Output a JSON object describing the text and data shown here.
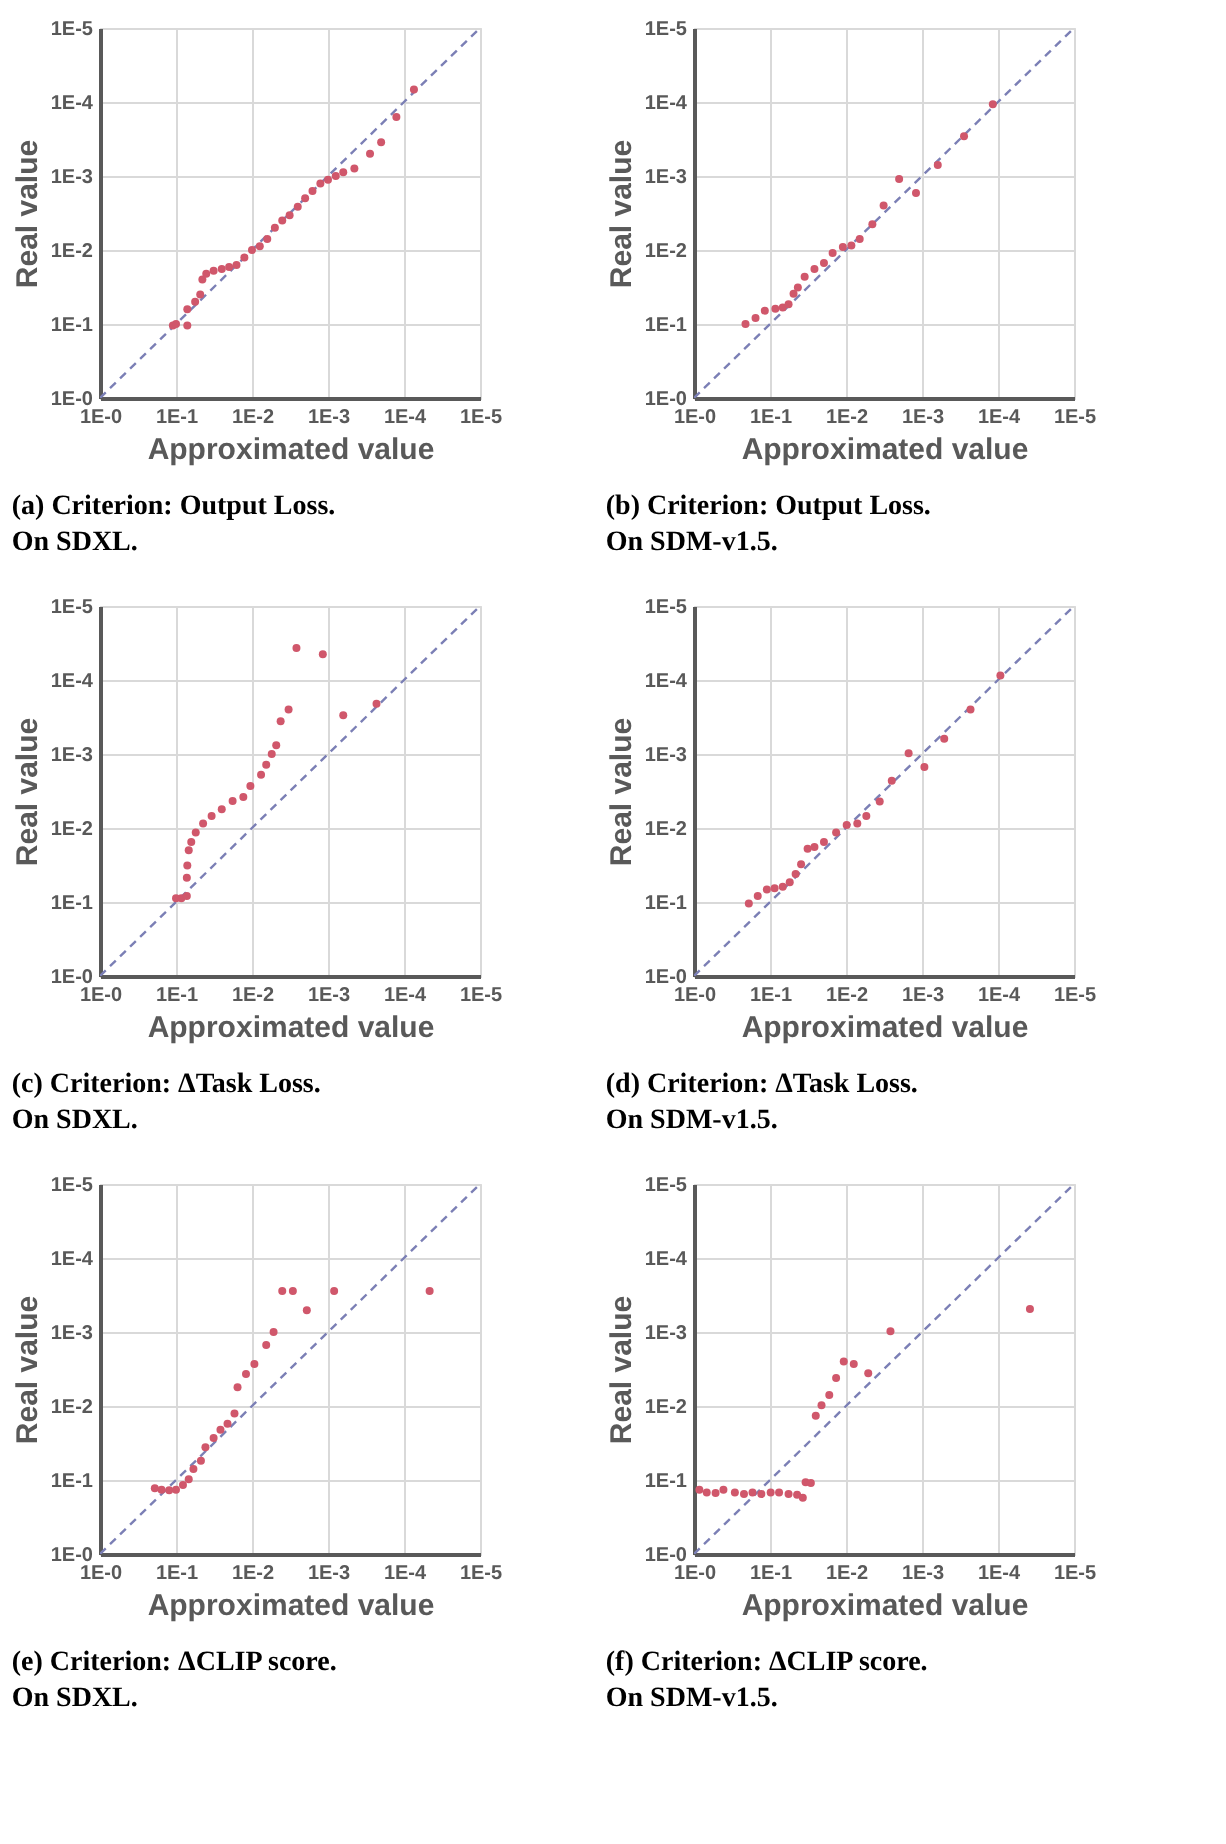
{
  "chart_data": [
    {
      "type": "scatter",
      "title": "(a) Criterion: Output Loss. On SDXL.",
      "xlabel": "Approximated value",
      "ylabel": "Real value",
      "log": "xy",
      "grid": true,
      "xlim": [
        1,
        1e-05
      ],
      "ylim": [
        1,
        1e-05
      ],
      "xticks": [
        {
          "value": 1,
          "label": "1E-0"
        },
        {
          "value": 0.1,
          "label": "1E-1"
        },
        {
          "value": 0.01,
          "label": "1E-2"
        },
        {
          "value": 0.001,
          "label": "1E-3"
        },
        {
          "value": 0.0001,
          "label": "1E-4"
        },
        {
          "value": 1e-05,
          "label": "1E-5"
        }
      ],
      "yticks": [
        {
          "value": 1,
          "label": "1E-0"
        },
        {
          "value": 0.1,
          "label": "1E-1"
        },
        {
          "value": 0.01,
          "label": "1E-2"
        },
        {
          "value": 0.001,
          "label": "1E-3"
        },
        {
          "value": 0.0001,
          "label": "1E-4"
        },
        {
          "value": 1e-05,
          "label": "1E-5"
        }
      ],
      "series": [
        {
          "type": "line",
          "line_style": "dashed",
          "color": "#7b7fb5",
          "x": [
            1,
            1e-05
          ],
          "values": [
            1,
            1e-05
          ]
        },
        {
          "marker": "circle",
          "color": "#d0576b",
          "x": [
            0.11,
            0.1,
            0.071,
            0.071,
            0.056,
            0.048,
            0.045,
            0.04,
            0.032,
            0.025,
            0.02,
            0.016,
            0.0126,
            0.01,
            0.0079,
            0.0063,
            0.005,
            0.004,
            0.0032,
            0.0025,
            0.002,
            0.0016,
            0.00126,
            0.001,
            0.00079,
            0.00063,
            0.00045,
            0.00028,
            0.0002,
            0.000126,
            7.4e-05
          ],
          "values": [
            0.105,
            0.1,
            0.105,
            0.063,
            0.05,
            0.04,
            0.025,
            0.021,
            0.019,
            0.018,
            0.017,
            0.016,
            0.0126,
            0.01,
            0.0089,
            0.0071,
            0.005,
            0.004,
            0.0034,
            0.0026,
            0.002,
            0.0016,
            0.00126,
            0.00112,
            0.001,
            0.00089,
            0.00079,
            0.0005,
            0.00035,
            0.00016,
            6.8e-05
          ]
        }
      ]
    },
    {
      "type": "scatter",
      "title": "(b) Criterion: Output Loss. On SDM-v1.5.",
      "xlabel": "Approximated value",
      "ylabel": "Real value",
      "log": "xy",
      "grid": true,
      "xlim": [
        1,
        1e-05
      ],
      "ylim": [
        1,
        1e-05
      ],
      "xticks": [
        {
          "value": 1,
          "label": "1E-0"
        },
        {
          "value": 0.1,
          "label": "1E-1"
        },
        {
          "value": 0.01,
          "label": "1E-2"
        },
        {
          "value": 0.001,
          "label": "1E-3"
        },
        {
          "value": 0.0001,
          "label": "1E-4"
        },
        {
          "value": 1e-05,
          "label": "1E-5"
        }
      ],
      "yticks": [
        {
          "value": 1,
          "label": "1E-0"
        },
        {
          "value": 0.1,
          "label": "1E-1"
        },
        {
          "value": 0.01,
          "label": "1E-2"
        },
        {
          "value": 0.001,
          "label": "1E-3"
        },
        {
          "value": 0.0001,
          "label": "1E-4"
        },
        {
          "value": 1e-05,
          "label": "1E-5"
        }
      ],
      "series": [
        {
          "type": "line",
          "line_style": "dashed",
          "color": "#7b7fb5",
          "x": [
            1,
            1e-05
          ],
          "values": [
            1,
            1e-05
          ]
        },
        {
          "marker": "circle",
          "color": "#d0576b",
          "x": [
            0.21,
            0.155,
            0.117,
            0.085,
            0.068,
            0.057,
            0.049,
            0.043,
            0.035,
            0.026,
            0.0195,
            0.015,
            0.011,
            0.0085,
            0.0066,
            0.0045,
            0.0032,
            0.002,
            0.0012,
            0.00062,
            0.00028,
            0.000117
          ],
          "values": [
            0.1,
            0.083,
            0.066,
            0.062,
            0.06,
            0.054,
            0.039,
            0.032,
            0.023,
            0.018,
            0.015,
            0.011,
            0.0091,
            0.0087,
            0.0071,
            0.0045,
            0.0025,
            0.0011,
            0.0017,
            0.00071,
            0.00029,
            0.000107
          ]
        }
      ]
    },
    {
      "type": "scatter",
      "title": "(c) Criterion: ΔTask Loss. On SDXL.",
      "xlabel": "Approximated value",
      "ylabel": "Real value",
      "log": "xy",
      "grid": true,
      "xlim": [
        1,
        1e-05
      ],
      "ylim": [
        1,
        1e-05
      ],
      "xticks": [
        {
          "value": 1,
          "label": "1E-0"
        },
        {
          "value": 0.1,
          "label": "1E-1"
        },
        {
          "value": 0.01,
          "label": "1E-2"
        },
        {
          "value": 0.001,
          "label": "1E-3"
        },
        {
          "value": 0.0001,
          "label": "1E-4"
        },
        {
          "value": 1e-05,
          "label": "1E-5"
        }
      ],
      "yticks": [
        {
          "value": 1,
          "label": "1E-0"
        },
        {
          "value": 0.1,
          "label": "1E-1"
        },
        {
          "value": 0.01,
          "label": "1E-2"
        },
        {
          "value": 0.001,
          "label": "1E-3"
        },
        {
          "value": 0.0001,
          "label": "1E-4"
        },
        {
          "value": 1e-05,
          "label": "1E-5"
        }
      ],
      "series": [
        {
          "type": "line",
          "line_style": "dashed",
          "color": "#7b7fb5",
          "x": [
            1,
            1e-05
          ],
          "values": [
            1,
            1e-05
          ]
        },
        {
          "marker": "circle",
          "color": "#d0576b",
          "x": [
            0.1,
            0.085,
            0.072,
            0.072,
            0.071,
            0.068,
            0.063,
            0.055,
            0.044,
            0.034,
            0.025,
            0.018,
            0.013,
            0.0105,
            0.0076,
            0.0065,
            0.0055,
            0.0048,
            0.0042,
            0.0033,
            0.0026,
            0.00117,
            0.00063,
            0.00023
          ],
          "values": [
            0.089,
            0.089,
            0.083,
            0.047,
            0.032,
            0.02,
            0.0155,
            0.0115,
            0.0087,
            0.0069,
            0.0056,
            0.0043,
            0.0038,
            0.0027,
            0.0019,
            0.0014,
            0.001,
            0.00076,
            0.00036,
            0.00025,
            3.7e-05,
            4.5e-05,
            0.0003,
            0.00021
          ]
        }
      ]
    },
    {
      "type": "scatter",
      "title": "(d) Criterion: ΔTask Loss. On SDM-v1.5.",
      "xlabel": "Approximated value",
      "ylabel": "Real value",
      "log": "xy",
      "grid": true,
      "xlim": [
        1,
        1e-05
      ],
      "ylim": [
        1,
        1e-05
      ],
      "xticks": [
        {
          "value": 1,
          "label": "1E-0"
        },
        {
          "value": 0.1,
          "label": "1E-1"
        },
        {
          "value": 0.01,
          "label": "1E-2"
        },
        {
          "value": 0.001,
          "label": "1E-3"
        },
        {
          "value": 0.0001,
          "label": "1E-4"
        },
        {
          "value": 1e-05,
          "label": "1E-5"
        }
      ],
      "yticks": [
        {
          "value": 1,
          "label": "1E-0"
        },
        {
          "value": 0.1,
          "label": "1E-1"
        },
        {
          "value": 0.01,
          "label": "1E-2"
        },
        {
          "value": 0.001,
          "label": "1E-3"
        },
        {
          "value": 0.0001,
          "label": "1E-4"
        },
        {
          "value": 1e-05,
          "label": "1E-5"
        }
      ],
      "series": [
        {
          "type": "line",
          "line_style": "dashed",
          "color": "#7b7fb5",
          "x": [
            1,
            1e-05
          ],
          "values": [
            1,
            1e-05
          ]
        },
        {
          "marker": "circle",
          "color": "#d0576b",
          "x": [
            0.19,
            0.145,
            0.11,
            0.087,
            0.068,
            0.055,
            0.046,
            0.039,
            0.032,
            0.026,
            0.0195,
            0.0135,
            0.0098,
            0.0071,
            0.0054,
            0.0036,
            0.0025,
            0.0015,
            0.00093,
            0.00051,
            0.00023,
            9.3e-05
          ],
          "values": [
            0.105,
            0.083,
            0.068,
            0.065,
            0.062,
            0.054,
            0.042,
            0.031,
            0.019,
            0.018,
            0.0155,
            0.0115,
            0.0091,
            0.0087,
            0.0069,
            0.0044,
            0.0023,
            0.00098,
            0.0015,
            0.00062,
            0.00025,
            8.7e-05
          ]
        }
      ]
    },
    {
      "type": "scatter",
      "title": "(e) Criterion: ΔCLIP score. On SDXL.",
      "xlabel": "Approximated value",
      "ylabel": "Real value",
      "log": "xy",
      "grid": true,
      "xlim": [
        1,
        1e-05
      ],
      "ylim": [
        1,
        1e-05
      ],
      "xticks": [
        {
          "value": 1,
          "label": "1E-0"
        },
        {
          "value": 0.1,
          "label": "1E-1"
        },
        {
          "value": 0.01,
          "label": "1E-2"
        },
        {
          "value": 0.001,
          "label": "1E-3"
        },
        {
          "value": 0.0001,
          "label": "1E-4"
        },
        {
          "value": 1e-05,
          "label": "1E-5"
        }
      ],
      "yticks": [
        {
          "value": 1,
          "label": "1E-0"
        },
        {
          "value": 0.1,
          "label": "1E-1"
        },
        {
          "value": 0.01,
          "label": "1E-2"
        },
        {
          "value": 0.001,
          "label": "1E-3"
        },
        {
          "value": 0.0001,
          "label": "1E-4"
        },
        {
          "value": 1e-05,
          "label": "1E-5"
        }
      ],
      "series": [
        {
          "type": "line",
          "line_style": "dashed",
          "color": "#7b7fb5",
          "x": [
            1,
            1e-05
          ],
          "values": [
            1,
            1e-05
          ]
        },
        {
          "marker": "circle",
          "color": "#d0576b",
          "x": [
            0.19,
            0.155,
            0.123,
            0.1,
            0.081,
            0.068,
            0.059,
            0.047,
            0.041,
            0.032,
            0.026,
            0.021,
            0.017,
            0.0155,
            0.012,
            0.0093,
            0.0065,
            0.0052,
            0.004,
            0.0029,
            0.0019,
            0.00083,
            4.6e-05
          ],
          "values": [
            0.129,
            0.135,
            0.138,
            0.135,
            0.117,
            0.098,
            0.071,
            0.055,
            0.036,
            0.027,
            0.021,
            0.0174,
            0.0126,
            0.0056,
            0.0037,
            0.0027,
            0.0015,
            0.001,
            0.00028,
            0.00028,
            0.00051,
            0.00028,
            0.00028
          ]
        }
      ]
    },
    {
      "type": "scatter",
      "title": "(f) Criterion: ΔCLIP score. On SDM-v1.5.",
      "xlabel": "Approximated value",
      "ylabel": "Real value",
      "log": "xy",
      "grid": true,
      "xlim": [
        1,
        1e-05
      ],
      "ylim": [
        1,
        1e-05
      ],
      "xticks": [
        {
          "value": 1,
          "label": "1E-0"
        },
        {
          "value": 0.1,
          "label": "1E-1"
        },
        {
          "value": 0.01,
          "label": "1E-2"
        },
        {
          "value": 0.001,
          "label": "1E-3"
        },
        {
          "value": 0.0001,
          "label": "1E-4"
        },
        {
          "value": 1e-05,
          "label": "1E-5"
        }
      ],
      "yticks": [
        {
          "value": 1,
          "label": "1E-0"
        },
        {
          "value": 0.1,
          "label": "1E-1"
        },
        {
          "value": 0.01,
          "label": "1E-2"
        },
        {
          "value": 0.001,
          "label": "1E-3"
        },
        {
          "value": 0.0001,
          "label": "1E-4"
        },
        {
          "value": 1e-05,
          "label": "1E-5"
        }
      ],
      "series": [
        {
          "type": "line",
          "line_style": "dashed",
          "color": "#7b7fb5",
          "x": [
            1,
            1e-05
          ],
          "values": [
            1,
            1e-05
          ]
        },
        {
          "marker": "circle",
          "color": "#d0576b",
          "x": [
            0.85,
            0.68,
            0.52,
            0.41,
            0.29,
            0.22,
            0.17,
            0.13,
            0.098,
            0.076,
            0.057,
            0.044,
            0.037,
            0.034,
            0.029,
            0.025,
            0.021,
            0.0166,
            0.0135,
            0.0107,
            0.0079,
            0.0051,
            0.0026,
            3.8e-05
          ],
          "values": [
            0.135,
            0.148,
            0.15,
            0.135,
            0.148,
            0.155,
            0.148,
            0.155,
            0.148,
            0.148,
            0.155,
            0.158,
            0.174,
            0.107,
            0.11,
            0.0135,
            0.0098,
            0.0071,
            0.0042,
            0.0025,
            0.0027,
            0.0036,
            0.00098,
            0.00049
          ]
        }
      ]
    }
  ]
}
